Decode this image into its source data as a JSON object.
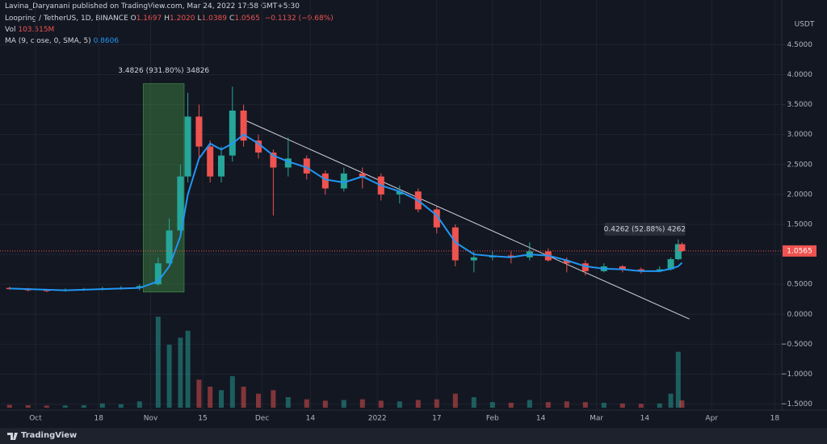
{
  "header": {
    "published": "Lavina_Daryanani published on TradingView.com, Mar 24, 2022 17:58 GMT+5:30",
    "symbol": "Loopring / TetherUS, 1D, BINANCE",
    "ohlc": [
      {
        "k": "O",
        "v": "1.1697"
      },
      {
        "k": "H",
        "v": "1.2020"
      },
      {
        "k": "L",
        "v": "1.0389"
      },
      {
        "k": "C",
        "v": "1.0565"
      }
    ],
    "change": "−0.1132 (−9.68%)",
    "vol_label": "Vol",
    "vol_value": "103.515M",
    "ma_label": "MA (9, close, 0, SMA, 5)",
    "ma_value": "0.8606"
  },
  "footer": "TradingView",
  "chart_data": {
    "type": "candlestick",
    "currency": "USDT",
    "up_color": "#26a69a",
    "down_color": "#ef5350",
    "ma_color": "#2196f3",
    "x": [
      "Sep 24",
      "Sep 29",
      "Oct 4",
      "Oct 9",
      "Oct 14",
      "Oct 19",
      "Oct 24",
      "Oct 29",
      "Nov 3",
      "Nov 6",
      "Nov 9",
      "Nov 11",
      "Nov 14",
      "Nov 17",
      "Nov 20",
      "Nov 23",
      "Nov 26",
      "Nov 30",
      "Dec 4",
      "Dec 8",
      "Dec 13",
      "Dec 18",
      "Dec 23",
      "Dec 28",
      "Jan 2",
      "Jan 7",
      "Jan 12",
      "Jan 17",
      "Jan 22",
      "Jan 27",
      "Feb 1",
      "Feb 6",
      "Feb 11",
      "Feb 16",
      "Feb 21",
      "Feb 26",
      "Mar 3",
      "Mar 8",
      "Mar 13",
      "Mar 18",
      "Mar 21",
      "Mar 23",
      "Mar 24"
    ],
    "open": [
      0.44,
      0.42,
      0.4,
      0.39,
      0.41,
      0.42,
      0.43,
      0.44,
      0.5,
      0.85,
      1.4,
      2.3,
      3.3,
      2.8,
      2.3,
      2.65,
      3.4,
      2.9,
      2.7,
      2.45,
      2.6,
      2.35,
      2.1,
      2.35,
      2.3,
      2.0,
      2.05,
      1.75,
      1.45,
      0.9,
      0.95,
      0.98,
      0.95,
      1.05,
      0.9,
      0.85,
      0.72,
      0.8,
      0.75,
      0.72,
      0.75,
      0.92,
      1.1697
    ],
    "high": [
      0.46,
      0.44,
      0.42,
      0.43,
      0.44,
      0.46,
      0.47,
      0.5,
      0.95,
      1.6,
      2.5,
      3.7,
      3.5,
      2.9,
      2.8,
      3.8,
      3.5,
      3.0,
      2.75,
      2.95,
      2.65,
      2.4,
      2.45,
      2.45,
      2.35,
      2.15,
      2.1,
      1.8,
      1.5,
      1.05,
      1.05,
      1.05,
      1.2,
      1.1,
      0.95,
      0.9,
      0.85,
      0.82,
      0.78,
      0.8,
      0.95,
      1.25,
      1.202
    ],
    "low": [
      0.41,
      0.38,
      0.37,
      0.38,
      0.39,
      0.4,
      0.41,
      0.4,
      0.48,
      0.8,
      1.3,
      2.2,
      2.6,
      2.2,
      2.2,
      2.55,
      2.8,
      2.6,
      1.65,
      2.3,
      2.25,
      2.0,
      2.05,
      2.1,
      1.9,
      1.85,
      1.7,
      1.35,
      0.8,
      0.7,
      0.9,
      0.85,
      0.9,
      0.88,
      0.7,
      0.65,
      0.7,
      0.7,
      0.68,
      0.7,
      0.73,
      0.9,
      1.0389
    ],
    "close": [
      0.42,
      0.4,
      0.39,
      0.41,
      0.42,
      0.43,
      0.44,
      0.47,
      0.85,
      1.4,
      2.3,
      3.3,
      2.8,
      2.3,
      2.65,
      3.4,
      2.9,
      2.7,
      2.45,
      2.6,
      2.35,
      2.1,
      2.35,
      2.3,
      2.0,
      2.05,
      1.75,
      1.45,
      0.9,
      0.95,
      0.98,
      0.95,
      1.05,
      0.9,
      0.85,
      0.72,
      0.8,
      0.75,
      0.72,
      0.75,
      0.92,
      1.17,
      1.0565
    ],
    "volume": [
      40,
      35,
      30,
      32,
      35,
      60,
      50,
      90,
      1300,
      900,
      1000,
      1100,
      400,
      300,
      250,
      450,
      300,
      200,
      250,
      150,
      120,
      100,
      110,
      120,
      100,
      90,
      110,
      120,
      200,
      150,
      80,
      70,
      110,
      80,
      90,
      80,
      70,
      60,
      55,
      60,
      200,
      800,
      103.515
    ],
    "ma": [
      0.43,
      0.42,
      0.41,
      0.4,
      0.41,
      0.42,
      0.43,
      0.44,
      0.55,
      0.8,
      1.3,
      2.0,
      2.6,
      2.85,
      2.75,
      2.85,
      3.0,
      2.85,
      2.65,
      2.55,
      2.45,
      2.25,
      2.2,
      2.3,
      2.15,
      2.05,
      1.9,
      1.65,
      1.2,
      1.0,
      0.97,
      0.95,
      1.0,
      0.98,
      0.9,
      0.8,
      0.76,
      0.75,
      0.72,
      0.72,
      0.76,
      0.8,
      0.8606
    ],
    "volume_lim": [
      0,
      1500
    ],
    "ylim": [
      -1.6,
      4.95
    ],
    "yticks": [
      {
        "value": 4.5,
        "label": "4.5000"
      },
      {
        "value": 4,
        "label": "4.0000"
      },
      {
        "value": 3.5,
        "label": "3.5000"
      },
      {
        "value": 3,
        "label": "3.0000"
      },
      {
        "value": 2.5,
        "label": "2.5000"
      },
      {
        "value": 2,
        "label": "2.0000"
      },
      {
        "value": 1.5,
        "label": "1.5000"
      },
      {
        "value": 1,
        "label": "1.0000"
      },
      {
        "value": 0.5,
        "label": "0.5000"
      },
      {
        "value": 0,
        "label": "0.0000"
      },
      {
        "value": -0.5,
        "label": "−0.5000"
      },
      {
        "value": -1,
        "label": "−1.0000"
      },
      {
        "value": -1.5,
        "label": "−1.5000"
      }
    ],
    "xticks": [
      {
        "value": "Oct 1",
        "label": "Oct"
      },
      {
        "value": "Oct 18",
        "label": "18"
      },
      {
        "value": "Nov 1",
        "label": "Nov"
      },
      {
        "value": "Nov 15",
        "label": "15"
      },
      {
        "value": "Dec 1",
        "label": "Dec"
      },
      {
        "value": "Dec 14",
        "label": "14"
      },
      {
        "value": "Jan 1",
        "label": "2022"
      },
      {
        "value": "Jan 17",
        "label": "17"
      },
      {
        "value": "Feb 1",
        "label": "Feb"
      },
      {
        "value": "Feb 14",
        "label": "14"
      },
      {
        "value": "Mar 1",
        "label": "Mar"
      },
      {
        "value": "Mar 14",
        "label": "14"
      },
      {
        "value": "Apr 1",
        "label": "Apr"
      },
      {
        "value": "Apr 18",
        "label": "18"
      }
    ],
    "last_price": 1.0565,
    "last_price_label": "1.0565",
    "range_box": {
      "x": [
        "Oct 30",
        "Nov 10"
      ],
      "y": [
        0.37,
        3.85
      ],
      "label": "3.4826 (931.80%) 34826"
    },
    "measure_label": {
      "x": "Mar 14",
      "y": 1.42,
      "label": "0.4262 (52.88%) 4262"
    },
    "trendline": {
      "x": [
        "Nov 26",
        "Mar 26"
      ],
      "y": [
        3.25,
        -0.08
      ]
    },
    "grid": true
  }
}
